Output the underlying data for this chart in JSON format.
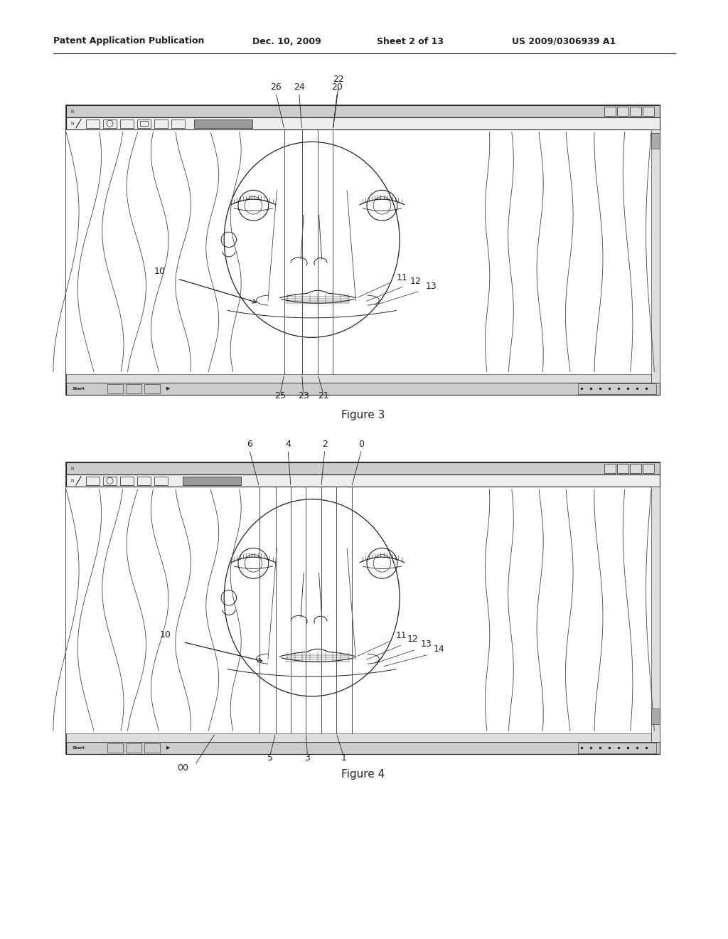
{
  "bg_color": "#ffffff",
  "header_text": "Patent Application Publication",
  "header_date": "Dec. 10, 2009",
  "header_sheet": "Sheet 2 of 13",
  "header_patent": "US 2009/0306939 A1",
  "fig3_caption": "Figure 3",
  "fig4_caption": "Figure 4",
  "line_color": "#222222",
  "hair_color": "#444444"
}
